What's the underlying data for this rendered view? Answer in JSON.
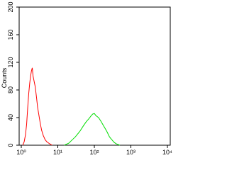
{
  "chart_data": {
    "type": "line",
    "y_label": "Counts",
    "log_x": true,
    "xlim": [
      1,
      10000
    ],
    "ylim": [
      0,
      200
    ],
    "xticks": [
      {
        "value": 1,
        "label": "10⁰"
      },
      {
        "value": 10,
        "label": "10¹"
      },
      {
        "value": 100,
        "label": "10²"
      },
      {
        "value": 1000,
        "label": "10³"
      },
      {
        "value": 10000,
        "label": "10⁴"
      }
    ],
    "yticks": [
      0,
      40,
      80,
      120,
      160,
      200
    ],
    "series": [
      {
        "color": "#ff0000",
        "x": [
          1.1,
          1.2,
          1.3,
          1.4,
          1.5,
          1.6,
          1.7,
          1.8,
          1.9,
          2.0,
          2.1,
          2.2,
          2.4,
          2.6,
          2.8,
          3.0,
          3.3,
          3.6,
          4.0,
          4.5,
          5.0,
          6.0,
          7.0
        ],
        "values": [
          0,
          5,
          15,
          30,
          55,
          75,
          90,
          100,
          108,
          112,
          100,
          95,
          85,
          70,
          55,
          45,
          32,
          22,
          14,
          8,
          5,
          2,
          0
        ]
      },
      {
        "color": "#00dd00",
        "x": [
          15,
          20,
          25,
          30,
          40,
          50,
          60,
          70,
          80,
          90,
          100,
          110,
          130,
          150,
          180,
          220,
          260,
          300,
          350,
          400,
          500
        ],
        "values": [
          0,
          3,
          8,
          12,
          20,
          28,
          34,
          38,
          42,
          45,
          46,
          43,
          40,
          35,
          28,
          20,
          12,
          8,
          4,
          2,
          0
        ]
      }
    ]
  }
}
